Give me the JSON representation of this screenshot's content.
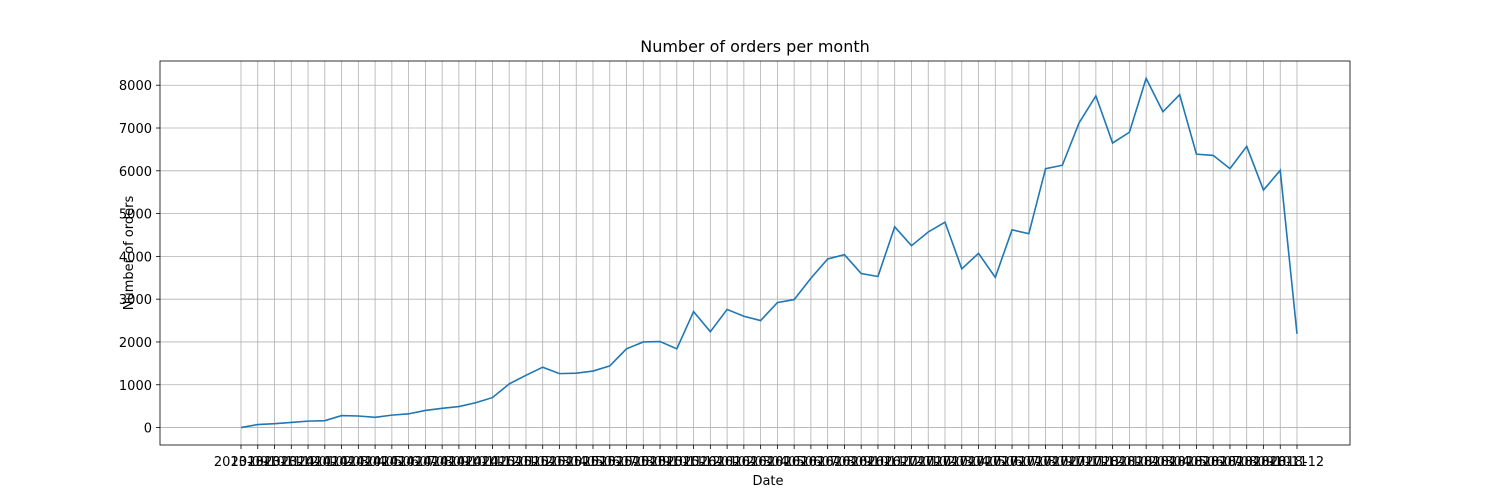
{
  "chart_data": {
    "type": "line",
    "title": "Number of orders per month",
    "x_label": "Date",
    "y_label": "Number of orders",
    "categories": [
      "2013-09",
      "2013-10",
      "2013-11",
      "2013-12",
      "2014-01",
      "2014-02",
      "2014-03",
      "2014-04",
      "2014-05",
      "2014-06",
      "2014-07",
      "2014-08",
      "2014-09",
      "2014-10",
      "2014-11",
      "2014-12",
      "2015-01",
      "2015-02",
      "2015-03",
      "2015-04",
      "2015-05",
      "2015-06",
      "2015-07",
      "2015-08",
      "2015-09",
      "2015-10",
      "2015-11",
      "2015-12",
      "2016-01",
      "2016-02",
      "2016-03",
      "2016-04",
      "2016-05",
      "2016-06",
      "2016-07",
      "2016-08",
      "2016-09",
      "2016-10",
      "2016-11",
      "2016-12",
      "2017-01",
      "2017-02",
      "2017-03",
      "2017-04",
      "2017-05",
      "2017-06",
      "2017-07",
      "2017-08",
      "2017-09",
      "2017-10",
      "2017-11",
      "2017-12",
      "2018-01",
      "2018-02",
      "2018-03",
      "2018-04",
      "2018-05",
      "2018-06",
      "2018-07",
      "2018-08",
      "2018-09",
      "2018-10",
      "2018-11",
      "2018-12"
    ],
    "series": [
      {
        "name": "Number of orders",
        "color": "#1f77b4",
        "values": [
          0,
          70,
          90,
          120,
          150,
          160,
          280,
          270,
          240,
          290,
          320,
          400,
          450,
          490,
          580,
          700,
          1020,
          1220,
          1410,
          1260,
          1270,
          1320,
          1440,
          1840,
          2000,
          2010,
          1840,
          2710,
          2240,
          2760,
          2600,
          2500,
          2920,
          2990,
          3490,
          3940,
          4040,
          3600,
          3530,
          4690,
          4250,
          4570,
          4800,
          3710,
          4070,
          3510,
          4620,
          4530,
          6050,
          6130,
          7120,
          7750,
          6650,
          6900,
          8160,
          7380,
          7780,
          6390,
          6360,
          6050,
          6570,
          5550,
          6010,
          2190
        ]
      }
    ],
    "ylim": [
      -408,
      8566
    ],
    "yticks": [
      0,
      1000,
      2000,
      3000,
      4000,
      5000,
      6000,
      7000,
      8000
    ],
    "grid": true
  }
}
